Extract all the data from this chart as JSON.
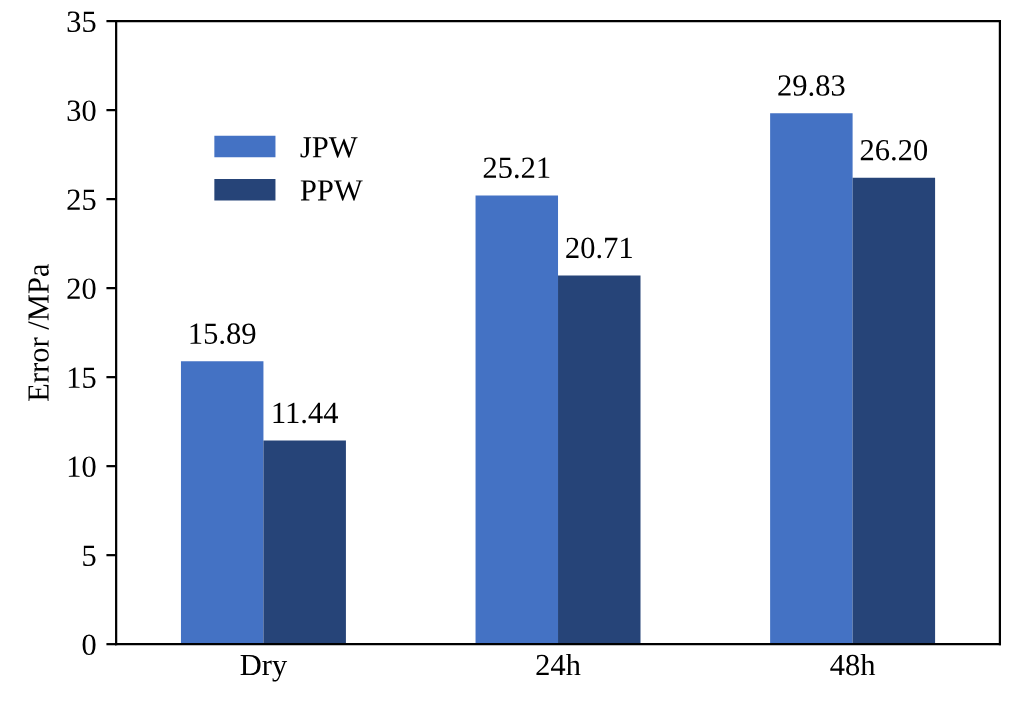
{
  "chart_data": {
    "type": "bar",
    "ylabel": "Error /MPa",
    "categories": [
      "Dry",
      "24h",
      "48h"
    ],
    "series": [
      {
        "name": "JPW",
        "color": "#4472c4",
        "values": [
          15.89,
          25.21,
          29.83
        ],
        "value_labels": [
          "15.89",
          "25.21",
          "29.83"
        ]
      },
      {
        "name": "PPW",
        "color": "#264478",
        "values": [
          11.44,
          20.71,
          26.2
        ],
        "value_labels": [
          "11.44",
          "20.71",
          "26.20"
        ]
      }
    ],
    "ylim": [
      0,
      35
    ],
    "yticks": [
      0,
      5,
      10,
      15,
      20,
      25,
      30,
      35
    ],
    "legend": "top left",
    "grid": false
  }
}
